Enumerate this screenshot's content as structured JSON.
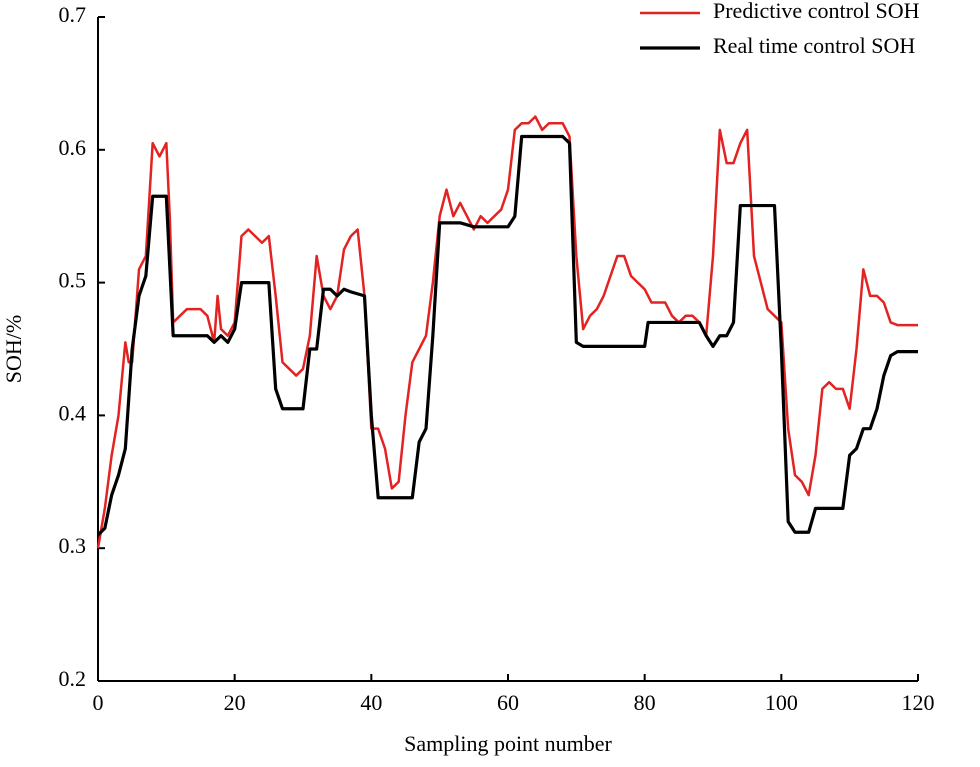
{
  "chart_data": {
    "type": "line",
    "xlabel": "Sampling point number",
    "ylabel": "SOH/%",
    "xlim": [
      0,
      120
    ],
    "xticks": [
      0,
      20,
      40,
      60,
      80,
      100,
      120
    ],
    "ylim": [
      0.2,
      0.7
    ],
    "yticks": [
      0.2,
      0.3,
      0.4,
      0.5,
      0.6,
      0.7
    ],
    "legend": "upper right",
    "series": [
      {
        "name": "Predictive control SOH",
        "color": "#e32322",
        "x": [
          0,
          1,
          2,
          3,
          4,
          4.5,
          5,
          6,
          7,
          8,
          9,
          10,
          10.5,
          11,
          12,
          13,
          15,
          16,
          17,
          17.5,
          18,
          19,
          20,
          21,
          22,
          23,
          24,
          25,
          26,
          27,
          28,
          29,
          30,
          31,
          32,
          33,
          34,
          35,
          36,
          37,
          38,
          39,
          40,
          41,
          42,
          43,
          44,
          45,
          46,
          47,
          48,
          49,
          50,
          51,
          52,
          53,
          54,
          55,
          56,
          57,
          58,
          59,
          60,
          61,
          62,
          63,
          64,
          65,
          66,
          67,
          68,
          69,
          70,
          71,
          72,
          73,
          74,
          75,
          76,
          77,
          78,
          79,
          80,
          81,
          82,
          83,
          84,
          85,
          86,
          87,
          88,
          89,
          90,
          91,
          92,
          93,
          94,
          95,
          96,
          97,
          98,
          99,
          100,
          101,
          102,
          103,
          104,
          105,
          106,
          107,
          108,
          109,
          110,
          111,
          112,
          113,
          114,
          115,
          116,
          117,
          120
        ],
        "values": [
          0.3,
          0.33,
          0.37,
          0.4,
          0.455,
          0.44,
          0.44,
          0.51,
          0.52,
          0.605,
          0.595,
          0.605,
          0.55,
          0.47,
          0.475,
          0.48,
          0.48,
          0.475,
          0.455,
          0.49,
          0.465,
          0.46,
          0.47,
          0.535,
          0.54,
          0.535,
          0.53,
          0.535,
          0.49,
          0.44,
          0.435,
          0.43,
          0.435,
          0.46,
          0.52,
          0.49,
          0.48,
          0.49,
          0.525,
          0.535,
          0.54,
          0.49,
          0.39,
          0.39,
          0.375,
          0.345,
          0.35,
          0.4,
          0.44,
          0.45,
          0.46,
          0.5,
          0.55,
          0.57,
          0.55,
          0.56,
          0.55,
          0.54,
          0.55,
          0.545,
          0.55,
          0.555,
          0.57,
          0.615,
          0.62,
          0.62,
          0.625,
          0.615,
          0.62,
          0.62,
          0.62,
          0.61,
          0.52,
          0.465,
          0.475,
          0.48,
          0.49,
          0.505,
          0.52,
          0.52,
          0.505,
          0.5,
          0.495,
          0.485,
          0.485,
          0.485,
          0.475,
          0.47,
          0.475,
          0.475,
          0.47,
          0.46,
          0.52,
          0.615,
          0.59,
          0.59,
          0.605,
          0.615,
          0.52,
          0.5,
          0.48,
          0.475,
          0.47,
          0.39,
          0.355,
          0.35,
          0.34,
          0.37,
          0.42,
          0.425,
          0.42,
          0.42,
          0.405,
          0.45,
          0.51,
          0.49,
          0.49,
          0.485,
          0.47,
          0.468,
          0.468
        ]
      },
      {
        "name": "Real time control SOH",
        "color": "#000000",
        "x": [
          0,
          1,
          2,
          3,
          4,
          5,
          6,
          7,
          8,
          10,
          11,
          16,
          17,
          18,
          19,
          20,
          21,
          25,
          26,
          27,
          30,
          31,
          32,
          33,
          34,
          35,
          36,
          37,
          39,
          40,
          41,
          46,
          47,
          48,
          49,
          50,
          53,
          55,
          60,
          61,
          62,
          68,
          69,
          70,
          71,
          80,
          80.5,
          88,
          89,
          90,
          91,
          92,
          93,
          94,
          99,
          100,
          101,
          102,
          104,
          105,
          109,
          110,
          111,
          112,
          113,
          114,
          115,
          116,
          117,
          120
        ],
        "values": [
          0.31,
          0.315,
          0.34,
          0.355,
          0.375,
          0.45,
          0.49,
          0.505,
          0.565,
          0.565,
          0.46,
          0.46,
          0.455,
          0.46,
          0.455,
          0.465,
          0.5,
          0.5,
          0.42,
          0.405,
          0.405,
          0.45,
          0.45,
          0.495,
          0.495,
          0.49,
          0.495,
          0.493,
          0.49,
          0.4,
          0.338,
          0.338,
          0.38,
          0.39,
          0.46,
          0.545,
          0.545,
          0.542,
          0.542,
          0.55,
          0.61,
          0.61,
          0.605,
          0.455,
          0.452,
          0.452,
          0.47,
          0.47,
          0.46,
          0.452,
          0.46,
          0.46,
          0.47,
          0.558,
          0.558,
          0.45,
          0.32,
          0.312,
          0.312,
          0.33,
          0.33,
          0.37,
          0.375,
          0.39,
          0.39,
          0.405,
          0.43,
          0.445,
          0.448,
          0.448
        ]
      }
    ]
  }
}
